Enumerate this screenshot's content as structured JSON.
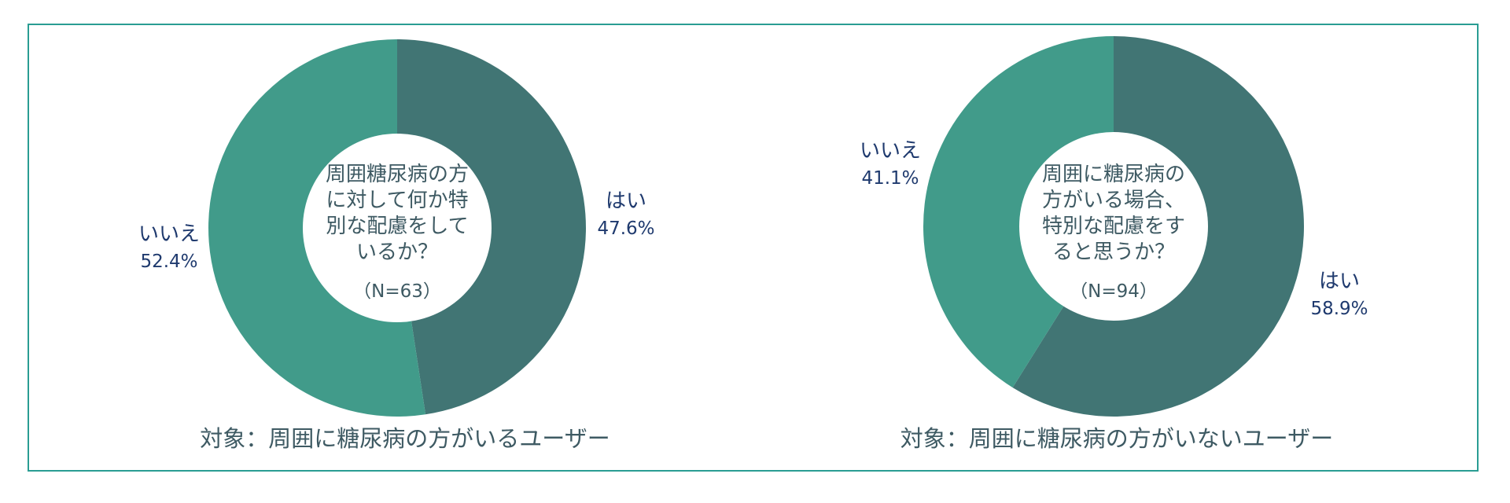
{
  "colors": {
    "yes": "#417574",
    "no": "#419b8a",
    "border": "#2a9d93"
  },
  "chart_data": [
    {
      "type": "pie",
      "center_text": [
        "周囲糖尿病の方",
        "に対して何か特",
        "別な配慮をして",
        "いるか？"
      ],
      "n_label": "（N=63）",
      "slices": [
        {
          "label": "はい",
          "value": 47.6,
          "pct_label": "47.6%"
        },
        {
          "label": "いいえ",
          "value": 52.4,
          "pct_label": "52.4%"
        }
      ],
      "footer": "対象：周囲に糖尿病の方がいるユーザー"
    },
    {
      "type": "pie",
      "center_text": [
        "周囲に糖尿病の",
        "方がいる場合、",
        "特別な配慮をす",
        "ると思うか？"
      ],
      "n_label": "（N=94）",
      "slices": [
        {
          "label": "はい",
          "value": 58.9,
          "pct_label": "58.9%"
        },
        {
          "label": "いいえ",
          "value": 41.1,
          "pct_label": "41.1%"
        }
      ],
      "footer": "対象：周囲に糖尿病の方がいないユーザー"
    }
  ]
}
